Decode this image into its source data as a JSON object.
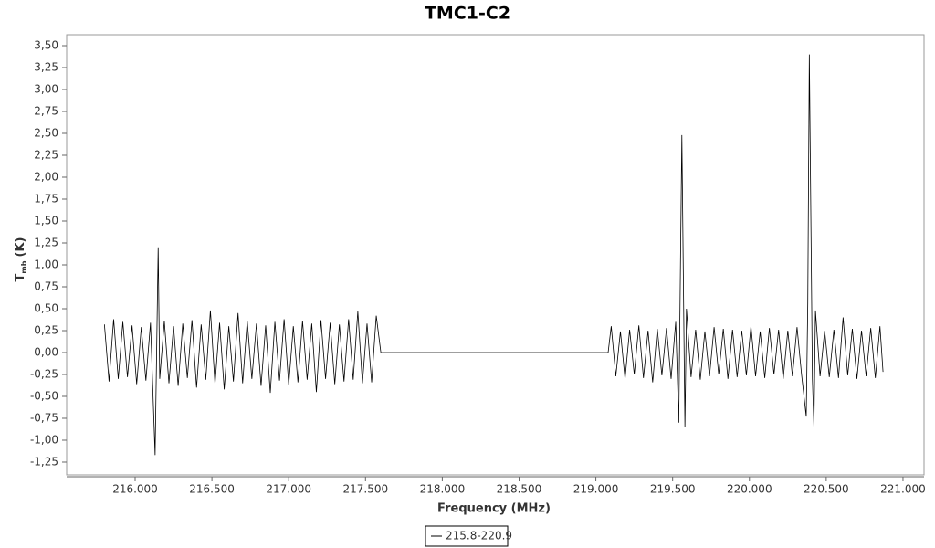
{
  "chart_data": {
    "type": "line",
    "title": "TMC1-C2",
    "xlabel": "Frequency (MHz)",
    "ylabel": "T",
    "ylabel_sub": "mb",
    "ylabel_unit": "(K)",
    "xlim": [
      215.554,
      221.137
    ],
    "ylim": [
      -1.396,
      3.625
    ],
    "xticks": [
      {
        "value": 216,
        "label": "216.000"
      },
      {
        "value": 216.5,
        "label": "216.500"
      },
      {
        "value": 217,
        "label": "217.000"
      },
      {
        "value": 217.5,
        "label": "217.500"
      },
      {
        "value": 218,
        "label": "218.000"
      },
      {
        "value": 218.5,
        "label": "218.500"
      },
      {
        "value": 219,
        "label": "219.000"
      },
      {
        "value": 219.5,
        "label": "219.500"
      },
      {
        "value": 220,
        "label": "220.000"
      },
      {
        "value": 220.5,
        "label": "220.500"
      },
      {
        "value": 221,
        "label": "221.000"
      }
    ],
    "yticks": [
      {
        "value": -1.25,
        "label": "-1,25"
      },
      {
        "value": -1,
        "label": "-1,00"
      },
      {
        "value": -0.75,
        "label": "-0,75"
      },
      {
        "value": -0.5,
        "label": "-0,50"
      },
      {
        "value": -0.25,
        "label": "-0,25"
      },
      {
        "value": 0,
        "label": "0,00"
      },
      {
        "value": 0.25,
        "label": "0,25"
      },
      {
        "value": 0.5,
        "label": "0,50"
      },
      {
        "value": 0.75,
        "label": "0,75"
      },
      {
        "value": 1,
        "label": "1,00"
      },
      {
        "value": 1.25,
        "label": "1,25"
      },
      {
        "value": 1.5,
        "label": "1,50"
      },
      {
        "value": 1.75,
        "label": "1,75"
      },
      {
        "value": 2,
        "label": "2,00"
      },
      {
        "value": 2.25,
        "label": "2,25"
      },
      {
        "value": 2.5,
        "label": "2,50"
      },
      {
        "value": 2.75,
        "label": "2,75"
      },
      {
        "value": 3,
        "label": "3,00"
      },
      {
        "value": 3.25,
        "label": "3,25"
      },
      {
        "value": 3.5,
        "label": "3,50"
      }
    ],
    "legend": "bottom",
    "series": [
      {
        "name": "215.8-220.9",
        "color": "#000000",
        "x": [
          215.8,
          215.83,
          215.86,
          215.89,
          215.92,
          215.95,
          215.98,
          216.01,
          216.04,
          216.07,
          216.1,
          216.13,
          216.15,
          216.16,
          216.19,
          216.22,
          216.25,
          216.28,
          216.31,
          216.34,
          216.37,
          216.4,
          216.43,
          216.46,
          216.49,
          216.52,
          216.55,
          216.58,
          216.61,
          216.64,
          216.67,
          216.7,
          216.73,
          216.76,
          216.79,
          216.82,
          216.85,
          216.88,
          216.91,
          216.94,
          216.97,
          217.0,
          217.03,
          217.06,
          217.09,
          217.12,
          217.15,
          217.18,
          217.21,
          217.24,
          217.27,
          217.3,
          217.33,
          217.36,
          217.39,
          217.42,
          217.45,
          217.48,
          217.51,
          217.54,
          217.57,
          217.6,
          219.08,
          219.1,
          219.13,
          219.16,
          219.19,
          219.22,
          219.25,
          219.28,
          219.31,
          219.34,
          219.37,
          219.4,
          219.43,
          219.46,
          219.49,
          219.52,
          219.54,
          219.56,
          219.58,
          219.59,
          219.62,
          219.65,
          219.68,
          219.71,
          219.74,
          219.77,
          219.8,
          219.83,
          219.86,
          219.89,
          219.92,
          219.95,
          219.98,
          220.01,
          220.04,
          220.07,
          220.1,
          220.13,
          220.16,
          220.19,
          220.22,
          220.25,
          220.28,
          220.31,
          220.34,
          220.37,
          220.38,
          220.39,
          220.41,
          220.42,
          220.43,
          220.46,
          220.49,
          220.52,
          220.55,
          220.58,
          220.61,
          220.64,
          220.67,
          220.7,
          220.73,
          220.76,
          220.79,
          220.82,
          220.85,
          220.87
        ],
        "values": [
          0.32,
          -0.33,
          0.38,
          -0.3,
          0.35,
          -0.28,
          0.31,
          -0.36,
          0.29,
          -0.32,
          0.34,
          -1.17,
          1.2,
          -0.3,
          0.36,
          -0.35,
          0.3,
          -0.38,
          0.33,
          -0.29,
          0.37,
          -0.4,
          0.32,
          -0.31,
          0.48,
          -0.36,
          0.34,
          -0.42,
          0.3,
          -0.33,
          0.45,
          -0.35,
          0.36,
          -0.3,
          0.33,
          -0.38,
          0.31,
          -0.46,
          0.35,
          -0.32,
          0.38,
          -0.37,
          0.3,
          -0.34,
          0.36,
          -0.31,
          0.33,
          -0.45,
          0.37,
          -0.3,
          0.34,
          -0.36,
          0.32,
          -0.33,
          0.38,
          -0.31,
          0.47,
          -0.35,
          0.33,
          -0.34,
          0.42,
          0.0,
          0.0,
          0.3,
          -0.27,
          0.24,
          -0.3,
          0.26,
          -0.25,
          0.31,
          -0.29,
          0.25,
          -0.34,
          0.27,
          -0.26,
          0.28,
          -0.3,
          0.35,
          -0.8,
          2.48,
          -0.85,
          0.5,
          -0.28,
          0.26,
          -0.31,
          0.24,
          -0.27,
          0.29,
          -0.25,
          0.27,
          -0.3,
          0.26,
          -0.28,
          0.25,
          -0.26,
          0.3,
          -0.27,
          0.24,
          -0.29,
          0.28,
          -0.25,
          0.26,
          -0.3,
          0.25,
          -0.27,
          0.29,
          -0.26,
          -0.73,
          0.56,
          3.4,
          -0.3,
          -0.85,
          0.48,
          -0.27,
          0.25,
          -0.28,
          0.26,
          -0.29,
          0.4,
          -0.26,
          0.27,
          -0.3,
          0.25,
          -0.27,
          0.28,
          -0.29,
          0.3,
          -0.22
        ]
      }
    ]
  }
}
